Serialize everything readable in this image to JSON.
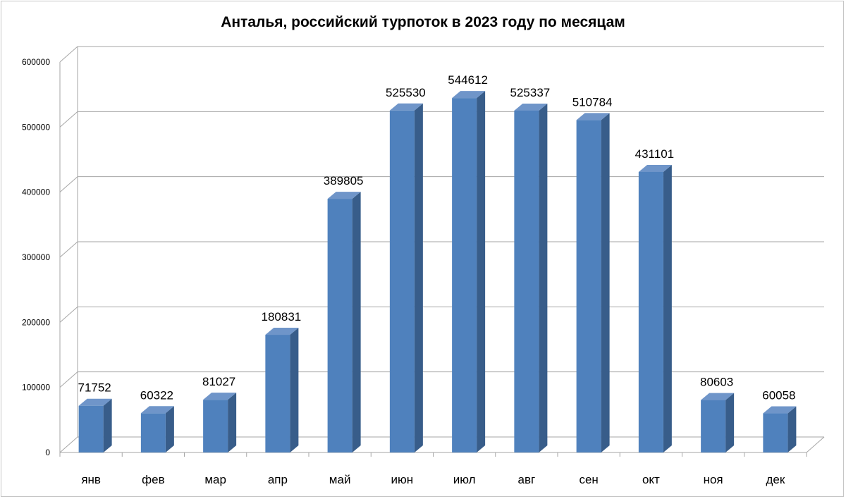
{
  "chart_data": {
    "type": "bar",
    "title": "Анталья, российский турпоток в 2023 году по месяцам",
    "categories": [
      "янв",
      "фев",
      "мар",
      "апр",
      "май",
      "июн",
      "июл",
      "авг",
      "сен",
      "окт",
      "ноя",
      "дек"
    ],
    "values": [
      71752,
      60322,
      81027,
      180831,
      389805,
      525530,
      544612,
      525337,
      510784,
      431101,
      80603,
      60058
    ],
    "data_labels": [
      "71752",
      "60322",
      "81027",
      "180831",
      "389805",
      "525530",
      "544612",
      "525337",
      "510784",
      "431101",
      "80603",
      "60058"
    ],
    "yticks": [
      "0",
      "100000",
      "200000",
      "300000",
      "400000",
      "500000",
      "600000"
    ],
    "ylim": [
      0,
      600000
    ],
    "grid": true,
    "legend": "none",
    "style": "3d-column",
    "colors": {
      "bar_front": "#4f81bd",
      "bar_side": "#385d8a",
      "bar_top": "#6f95c9",
      "gridline": "#a6a6a6"
    }
  }
}
